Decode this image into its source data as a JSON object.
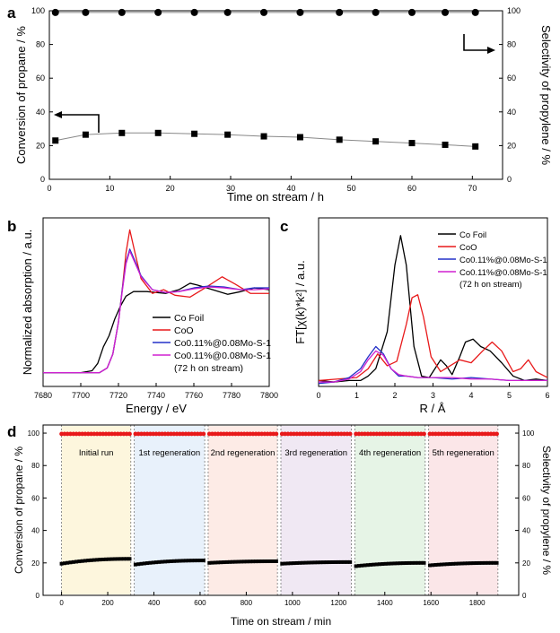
{
  "panels": {
    "a": {
      "label": "a"
    },
    "b": {
      "label": "b"
    },
    "c": {
      "label": "c"
    },
    "d": {
      "label": "d"
    }
  },
  "chart_data": [
    {
      "id": "a",
      "type": "scatter",
      "xlabel": "Time on stream / h",
      "ylabel": "Conversion of propane / %",
      "y2label": "Selectivity of propylene / %",
      "xlim": [
        0,
        75
      ],
      "ylim": [
        0,
        100
      ],
      "y2lim": [
        0,
        100
      ],
      "xticks": [
        "0",
        "10",
        "20",
        "30",
        "40",
        "50",
        "60",
        "70"
      ],
      "yticks": [
        "0",
        "20",
        "40",
        "60",
        "80",
        "100"
      ],
      "series": [
        {
          "name": "Selectivity",
          "axis": "right",
          "marker": "circle",
          "x": [
            1,
            6,
            12,
            18,
            24,
            29.5,
            35.5,
            41.5,
            48,
            54,
            60,
            65.5,
            70.5
          ],
          "y": [
            99,
            99,
            99,
            99,
            99,
            99,
            99,
            99,
            99,
            99,
            99,
            99,
            99
          ]
        },
        {
          "name": "Conversion",
          "axis": "left",
          "marker": "square",
          "x": [
            1,
            6,
            12,
            18,
            24,
            29.5,
            35.5,
            41.5,
            48,
            54,
            60,
            65.5,
            70.5
          ],
          "y": [
            23,
            26.5,
            27.5,
            27.5,
            27,
            26.5,
            25.5,
            25,
            23.5,
            22.5,
            21.5,
            20.5,
            19.5
          ]
        }
      ]
    },
    {
      "id": "b",
      "type": "line",
      "xlabel": "Energy / eV",
      "ylabel": "Normalized absorption / a.u.",
      "xlim": [
        7680,
        7800
      ],
      "xticks": [
        "7680",
        "7700",
        "7720",
        "7740",
        "7760",
        "7780",
        "7800"
      ],
      "legend": [
        "Co Foil",
        "CoO",
        "Co0.11%@0.08Mo-S-1",
        "Co0.11%@0.08Mo-S-1"
      ],
      "legend_note": "(72 h on stream)",
      "series": [
        {
          "name": "Co Foil",
          "color": "#000000",
          "x": [
            7680,
            7700,
            7706,
            7709,
            7712,
            7715,
            7718,
            7721,
            7724,
            7728,
            7735,
            7745,
            7752,
            7758,
            7762,
            7770,
            7778,
            7785,
            7792,
            7800
          ],
          "y": [
            0.0,
            0.0,
            0.02,
            0.1,
            0.28,
            0.4,
            0.58,
            0.72,
            0.83,
            0.88,
            0.88,
            0.86,
            0.9,
            0.97,
            0.95,
            0.9,
            0.85,
            0.88,
            0.92,
            0.9
          ]
        },
        {
          "name": "CoO",
          "color": "#e8191a",
          "x": [
            7680,
            7710,
            7714,
            7717,
            7720,
            7722,
            7724,
            7726,
            7729,
            7732,
            7738,
            7744,
            7750,
            7758,
            7766,
            7775,
            7782,
            7790,
            7800
          ],
          "y": [
            0.0,
            0.0,
            0.05,
            0.2,
            0.55,
            0.9,
            1.3,
            1.55,
            1.28,
            1.02,
            0.86,
            0.9,
            0.84,
            0.82,
            0.92,
            1.04,
            0.96,
            0.86,
            0.86
          ]
        },
        {
          "name": "Co0.11%@0.08Mo-S-1",
          "color": "#2430c8",
          "x": [
            7680,
            7710,
            7714,
            7717,
            7720,
            7722,
            7724,
            7726,
            7729,
            7732,
            7738,
            7745,
            7752,
            7760,
            7768,
            7776,
            7785,
            7792,
            7800
          ],
          "y": [
            0.0,
            0.0,
            0.05,
            0.2,
            0.55,
            0.9,
            1.2,
            1.34,
            1.2,
            1.05,
            0.9,
            0.87,
            0.88,
            0.92,
            0.94,
            0.93,
            0.9,
            0.92,
            0.92
          ]
        },
        {
          "name": "Co0.11%@0.08Mo-S-1 (72 h on stream)",
          "color": "#d020d0",
          "x": [
            7680,
            7710,
            7714,
            7717,
            7720,
            7722,
            7724,
            7726,
            7729,
            7732,
            7738,
            7745,
            7752,
            7760,
            7768,
            7776,
            7785,
            7792,
            7800
          ],
          "y": [
            0.0,
            0.0,
            0.05,
            0.2,
            0.55,
            0.88,
            1.18,
            1.32,
            1.18,
            1.04,
            0.9,
            0.87,
            0.88,
            0.91,
            0.93,
            0.92,
            0.9,
            0.9,
            0.91
          ]
        }
      ]
    },
    {
      "id": "c",
      "type": "line",
      "xlabel": "R / Å",
      "ylabel": "FT[χ(k)*k²] / a.u.",
      "xlim": [
        0,
        6
      ],
      "xticks": [
        "0",
        "1",
        "2",
        "3",
        "4",
        "5",
        "6"
      ],
      "legend": [
        "Co Foil",
        "CoO",
        "Co0.11%@0.08Mo-S-1",
        "Co0.11%@0.08Mo-S-1"
      ],
      "legend_note": "(72 h on stream)",
      "series": [
        {
          "name": "Co Foil",
          "color": "#000000",
          "x": [
            0,
            0.4,
            0.8,
            1.1,
            1.3,
            1.5,
            1.8,
            2.0,
            2.15,
            2.3,
            2.5,
            2.7,
            2.9,
            3.05,
            3.2,
            3.35,
            3.5,
            3.7,
            3.85,
            4.05,
            4.25,
            4.5,
            4.8,
            5.1,
            5.4,
            5.7,
            6.0
          ],
          "y": [
            0.02,
            0.01,
            0.02,
            0.02,
            0.05,
            0.1,
            0.35,
            0.8,
            1.0,
            0.8,
            0.25,
            0.05,
            0.04,
            0.1,
            0.16,
            0.12,
            0.06,
            0.18,
            0.28,
            0.3,
            0.25,
            0.22,
            0.14,
            0.05,
            0.02,
            0.03,
            0.02
          ]
        },
        {
          "name": "CoO",
          "color": "#e8191a",
          "x": [
            0,
            0.5,
            1.0,
            1.3,
            1.55,
            1.8,
            2.05,
            2.3,
            2.45,
            2.6,
            2.75,
            2.95,
            3.2,
            3.45,
            3.7,
            4.0,
            4.3,
            4.55,
            4.8,
            5.1,
            5.3,
            5.5,
            5.7,
            6.0
          ],
          "y": [
            0.02,
            0.03,
            0.04,
            0.1,
            0.2,
            0.12,
            0.15,
            0.4,
            0.58,
            0.6,
            0.45,
            0.18,
            0.08,
            0.12,
            0.16,
            0.14,
            0.22,
            0.28,
            0.22,
            0.08,
            0.1,
            0.16,
            0.08,
            0.04
          ]
        },
        {
          "name": "Co0.11%@0.08Mo-S-1",
          "color": "#2430c8",
          "x": [
            0,
            0.4,
            0.8,
            1.1,
            1.3,
            1.5,
            1.7,
            1.9,
            2.1,
            2.3,
            2.6,
            3.0,
            3.5,
            4.0,
            4.5,
            5.0,
            5.5,
            6.0
          ],
          "y": [
            0.0,
            0.01,
            0.04,
            0.1,
            0.18,
            0.25,
            0.2,
            0.1,
            0.05,
            0.05,
            0.04,
            0.04,
            0.03,
            0.04,
            0.03,
            0.02,
            0.02,
            0.02
          ]
        },
        {
          "name": "Co0.11%@0.08Mo-S-1 (72 h on stream)",
          "color": "#d020d0",
          "x": [
            0,
            0.4,
            0.8,
            1.1,
            1.3,
            1.5,
            1.7,
            1.9,
            2.1,
            2.3,
            2.6,
            3.0,
            3.5,
            4.0,
            4.5,
            5.0,
            5.5,
            6.0
          ],
          "y": [
            0.01,
            0.01,
            0.03,
            0.08,
            0.16,
            0.22,
            0.19,
            0.1,
            0.06,
            0.05,
            0.04,
            0.04,
            0.04,
            0.03,
            0.03,
            0.02,
            0.02,
            0.02
          ]
        }
      ]
    },
    {
      "id": "d",
      "type": "scatter",
      "xlabel": "Time on stream / min",
      "ylabel": "Conversion of propane / %",
      "y2label": "Selectivity of propylene / %",
      "xlim": [
        -80,
        1980
      ],
      "ylim": [
        0,
        105
      ],
      "xticks": [
        0,
        200,
        400,
        600,
        800,
        1000,
        1200,
        1400,
        1600,
        1800
      ],
      "yticks": [
        0,
        20,
        40,
        60,
        80,
        100
      ],
      "regions": [
        {
          "label": "Initial run",
          "start": 0,
          "end": 300,
          "color": "#fdf6dd"
        },
        {
          "label": "1st regeneration",
          "start": 315,
          "end": 620,
          "color": "#e8f1fb"
        },
        {
          "label": "2nd regeneration",
          "start": 635,
          "end": 935,
          "color": "#fdebe6"
        },
        {
          "label": "3rd regeneration",
          "start": 950,
          "end": 1255,
          "color": "#f0e8f3"
        },
        {
          "label": "4th regeneration",
          "start": 1270,
          "end": 1575,
          "color": "#e6f4e6"
        },
        {
          "label": "5th regeneration",
          "start": 1590,
          "end": 1890,
          "color": "#fbe6e8"
        }
      ],
      "series": [
        {
          "name": "Selectivity",
          "color": "#e8191a",
          "value": 99.5
        },
        {
          "name": "Conversion",
          "color": "#000000",
          "runs": [
            {
              "start": 0,
              "end": 295,
              "from": 19.5,
              "to": 22.5
            },
            {
              "start": 320,
              "end": 615,
              "from": 19.0,
              "to": 21.5
            },
            {
              "start": 640,
              "end": 930,
              "from": 20.0,
              "to": 21.0
            },
            {
              "start": 955,
              "end": 1250,
              "from": 19.5,
              "to": 20.5
            },
            {
              "start": 1275,
              "end": 1570,
              "from": 18.0,
              "to": 20.0
            },
            {
              "start": 1595,
              "end": 1885,
              "from": 18.5,
              "to": 20.0
            }
          ]
        }
      ]
    }
  ]
}
